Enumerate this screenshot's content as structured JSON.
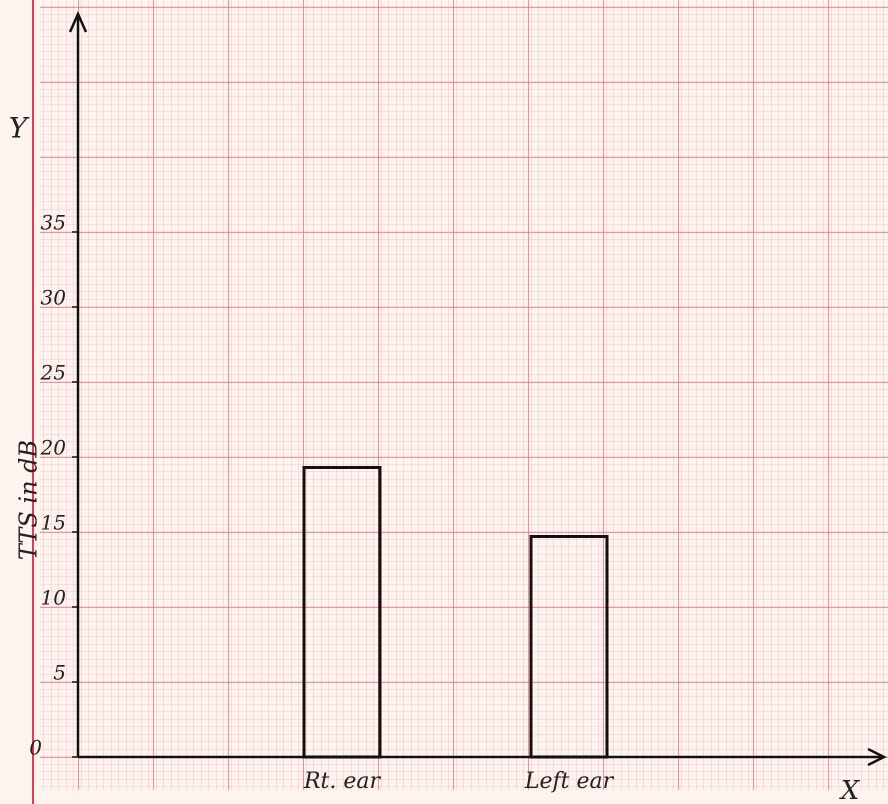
{
  "chart_data": {
    "type": "bar",
    "y_axis_letter": "Y",
    "x_axis_letter": "X",
    "y_label": "TTS in dB",
    "categories": [
      "Rt. ear",
      "Left ear"
    ],
    "values": [
      19.3,
      14.7
    ],
    "color": "#111111",
    "ylim": [
      0,
      49
    ],
    "yticks": [
      0,
      5,
      10,
      15,
      20,
      25,
      30,
      35
    ]
  }
}
